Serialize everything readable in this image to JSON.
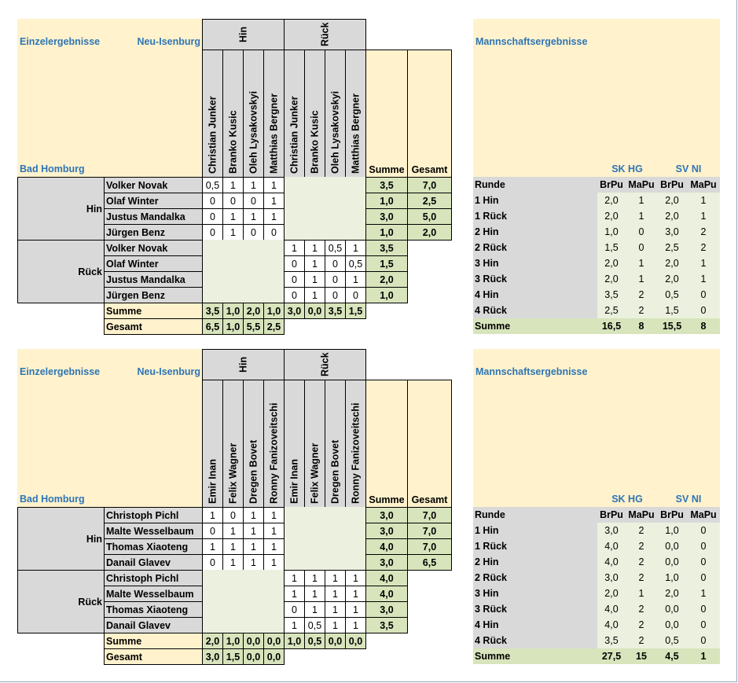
{
  "blocks": [
    {
      "left": {
        "title": "Einzelergebnisse",
        "home": "Neu-Isenburg",
        "away": "Bad Homburg",
        "hin": "Hin",
        "rueck": "Rück",
        "players": [
          "Christian Junker",
          "Branko Kusic",
          "Oleh Lysakovskyi",
          "Matthias Bergner"
        ],
        "summe_label": "Summe",
        "gesamt_label": "Gesamt",
        "groups": [
          {
            "label": "Hin",
            "rows": [
              {
                "name": "Volker Novak",
                "scores": [
                  "0,5",
                  "1",
                  "1",
                  "1"
                ],
                "summe": "3,5",
                "gesamt": "7,0"
              },
              {
                "name": "Olaf Winter",
                "scores": [
                  "0",
                  "0",
                  "0",
                  "1"
                ],
                "summe": "1,0",
                "gesamt": "2,5"
              },
              {
                "name": "Justus Mandalka",
                "scores": [
                  "0",
                  "1",
                  "1",
                  "1"
                ],
                "summe": "3,0",
                "gesamt": "5,0"
              },
              {
                "name": "Jürgen Benz",
                "scores": [
                  "0",
                  "1",
                  "0",
                  "0"
                ],
                "summe": "1,0",
                "gesamt": "2,0"
              }
            ]
          },
          {
            "label": "Rück",
            "rows": [
              {
                "name": "Volker Novak",
                "scores": [
                  "1",
                  "1",
                  "0,5",
                  "1"
                ],
                "summe": "3,5"
              },
              {
                "name": "Olaf Winter",
                "scores": [
                  "0",
                  "1",
                  "0",
                  "0,5"
                ],
                "summe": "1,5"
              },
              {
                "name": "Justus Mandalka",
                "scores": [
                  "0",
                  "1",
                  "0",
                  "1"
                ],
                "summe": "2,0"
              },
              {
                "name": "Jürgen Benz",
                "scores": [
                  "0",
                  "1",
                  "0",
                  "0"
                ],
                "summe": "1,0"
              }
            ]
          }
        ],
        "summe_row": {
          "label": "Summe",
          "values": [
            "3,5",
            "1,0",
            "2,0",
            "1,0",
            "3,0",
            "0,0",
            "3,5",
            "1,5"
          ]
        },
        "gesamt_row": {
          "label": "Gesamt",
          "values": [
            "6,5",
            "1,0",
            "5,5",
            "2,5"
          ]
        }
      },
      "right": {
        "title": "Mannschaftsergebnisse",
        "teams": [
          "SK HG",
          "SV NI"
        ],
        "header": [
          "Runde",
          "BrPu",
          "MaPu",
          "BrPu",
          "MaPu"
        ],
        "rows": [
          [
            "1 Hin",
            "2,0",
            "1",
            "2,0",
            "1"
          ],
          [
            "1 Rück",
            "2,0",
            "1",
            "2,0",
            "1"
          ],
          [
            "2 Hin",
            "1,0",
            "0",
            "3,0",
            "2"
          ],
          [
            "2 Rück",
            "1,5",
            "0",
            "2,5",
            "2"
          ],
          [
            "3 Hin",
            "2,0",
            "1",
            "2,0",
            "1"
          ],
          [
            "3 Rück",
            "2,0",
            "1",
            "2,0",
            "1"
          ],
          [
            "4 Hin",
            "3,5",
            "2",
            "0,5",
            "0"
          ],
          [
            "4 Rück",
            "2,5",
            "2",
            "1,5",
            "0"
          ]
        ],
        "summe": [
          "Summe",
          "16,5",
          "8",
          "15,5",
          "8"
        ]
      }
    },
    {
      "left": {
        "title": "Einzelergebnisse",
        "home": "Neu-Isenburg",
        "away": "Bad Homburg",
        "hin": "Hin",
        "rueck": "Rück",
        "players": [
          "Emir Inan",
          "Felix Wagner",
          "Dregen Bovet",
          "Ronny Fanizoveitschi"
        ],
        "summe_label": "Summe",
        "gesamt_label": "Gesamt",
        "groups": [
          {
            "label": "Hin",
            "rows": [
              {
                "name": "Christoph Pichl",
                "scores": [
                  "1",
                  "0",
                  "1",
                  "1"
                ],
                "summe": "3,0",
                "gesamt": "7,0"
              },
              {
                "name": "Malte Wesselbaum",
                "scores": [
                  "0",
                  "1",
                  "1",
                  "1"
                ],
                "summe": "3,0",
                "gesamt": "7,0"
              },
              {
                "name": "Thomas Xiaoteng",
                "scores": [
                  "1",
                  "1",
                  "1",
                  "1"
                ],
                "summe": "4,0",
                "gesamt": "7,0"
              },
              {
                "name": "Danail Glavev",
                "scores": [
                  "0",
                  "1",
                  "1",
                  "1"
                ],
                "summe": "3,0",
                "gesamt": "6,5"
              }
            ]
          },
          {
            "label": "Rück",
            "rows": [
              {
                "name": "Christoph Pichl",
                "scores": [
                  "1",
                  "1",
                  "1",
                  "1"
                ],
                "summe": "4,0"
              },
              {
                "name": "Malte Wesselbaum",
                "scores": [
                  "1",
                  "1",
                  "1",
                  "1"
                ],
                "summe": "4,0"
              },
              {
                "name": "Thomas Xiaoteng",
                "scores": [
                  "0",
                  "1",
                  "1",
                  "1"
                ],
                "summe": "3,0"
              },
              {
                "name": "Danail Glavev",
                "scores": [
                  "1",
                  "0,5",
                  "1",
                  "1"
                ],
                "summe": "3,5"
              }
            ]
          }
        ],
        "summe_row": {
          "label": "Summe",
          "values": [
            "2,0",
            "1,0",
            "0,0",
            "0,0",
            "1,0",
            "0,5",
            "0,0",
            "0,0"
          ]
        },
        "gesamt_row": {
          "label": "Gesamt",
          "values": [
            "3,0",
            "1,5",
            "0,0",
            "0,0"
          ]
        }
      },
      "right": {
        "title": "Mannschaftsergebnisse",
        "teams": [
          "SK HG",
          "SV NI"
        ],
        "header": [
          "Runde",
          "BrPu",
          "MaPu",
          "BrPu",
          "MaPu"
        ],
        "rows": [
          [
            "1 Hin",
            "3,0",
            "2",
            "1,0",
            "0"
          ],
          [
            "1 Rück",
            "4,0",
            "2",
            "0,0",
            "0"
          ],
          [
            "2 Hin",
            "4,0",
            "2",
            "0,0",
            "0"
          ],
          [
            "2 Rück",
            "3,0",
            "2",
            "1,0",
            "0"
          ],
          [
            "3 Hin",
            "2,0",
            "1",
            "2,0",
            "1"
          ],
          [
            "3 Rück",
            "4,0",
            "2",
            "0,0",
            "0"
          ],
          [
            "4 Hin",
            "4,0",
            "2",
            "0,0",
            "0"
          ],
          [
            "4 Rück",
            "3,5",
            "2",
            "0,5",
            "0"
          ]
        ],
        "summe": [
          "Summe",
          "27,5",
          "15",
          "4,5",
          "1"
        ]
      }
    }
  ]
}
